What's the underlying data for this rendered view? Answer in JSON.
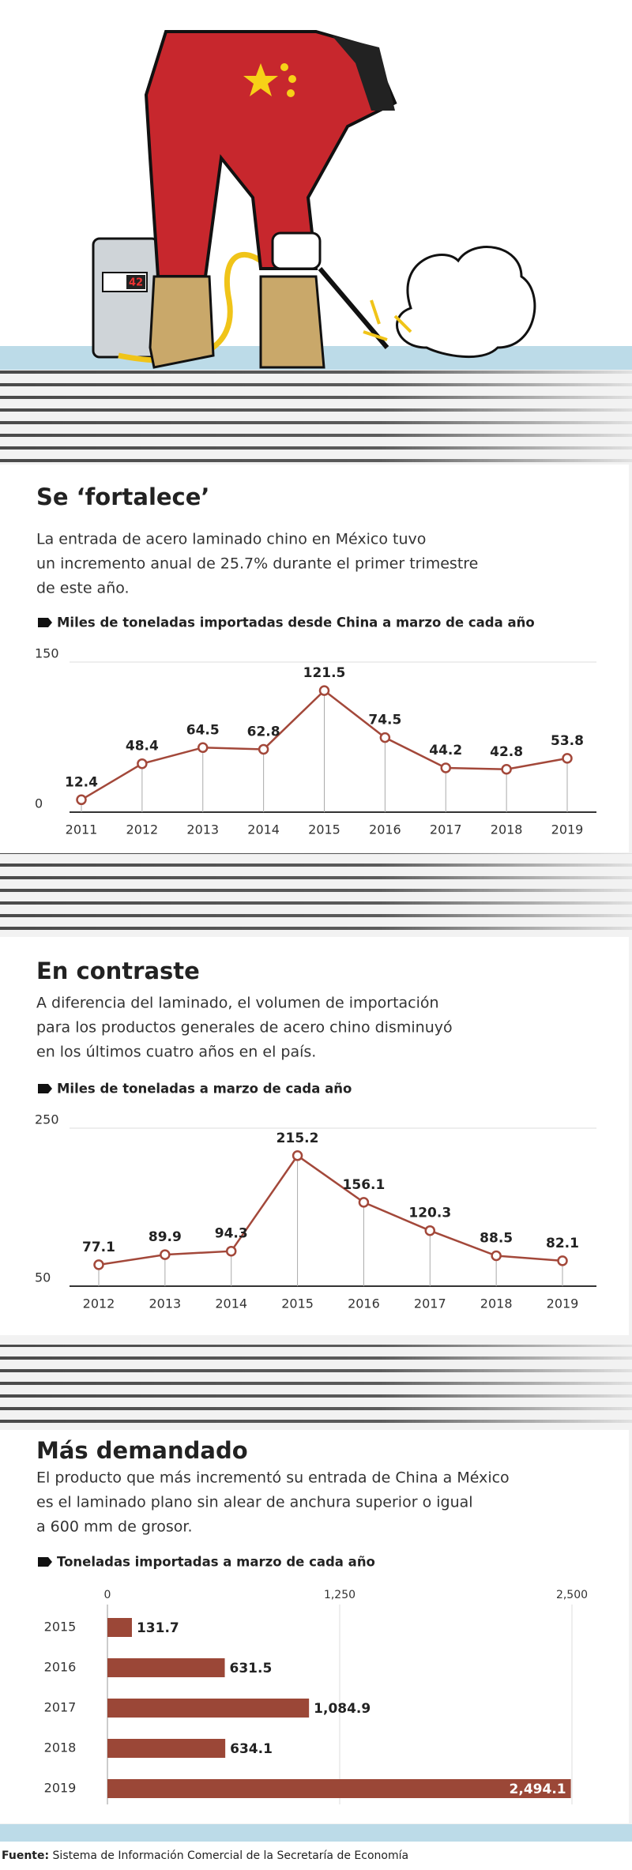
{
  "illustration": {
    "display": "42"
  },
  "chart_data": [
    {
      "type": "line",
      "title": "Se ‘fortalece’",
      "subtitle": [
        "La entrada de acero laminado chino en México tuvo",
        "un incremento anual de 25.7% durante el primer trimestre",
        "de este año."
      ],
      "axis_label": "Miles de toneladas importadas desde China a marzo de cada año",
      "categories": [
        "2011",
        "2012",
        "2013",
        "2014",
        "2015",
        "2016",
        "2017",
        "2018",
        "2019"
      ],
      "values": [
        12.4,
        48.4,
        64.5,
        62.8,
        121.5,
        74.5,
        44.2,
        42.8,
        53.8
      ],
      "color": "#a3483a",
      "ylim": [
        0,
        150
      ],
      "yticks": [
        0,
        150
      ],
      "grid": true
    },
    {
      "type": "line",
      "title": "En contraste",
      "subtitle": [
        "A diferencia del laminado, el volumen de importación",
        "para los productos generales de acero chino disminuyó",
        "en los últimos cuatro años en el país."
      ],
      "axis_label": "Miles de toneladas a marzo de cada año",
      "categories": [
        "2012",
        "2013",
        "2014",
        "2015",
        "2016",
        "2017",
        "2018",
        "2019"
      ],
      "values": [
        77.1,
        89.9,
        94.3,
        215.2,
        156.1,
        120.3,
        88.5,
        82.1
      ],
      "color": "#a3483a",
      "ylim": [
        50,
        250
      ],
      "yticks": [
        50,
        250
      ],
      "grid": true
    },
    {
      "type": "hbar",
      "title": "Más demandado",
      "subtitle": [
        "El producto que más incrementó su entrada de China a México",
        "es el laminado plano sin alear de anchura superior o igual",
        "a 600 mm de grosor."
      ],
      "axis_label": "Toneladas importadas a marzo de cada año",
      "categories": [
        "2015",
        "2016",
        "2017",
        "2018",
        "2019"
      ],
      "values": [
        131.7,
        631.5,
        1084.9,
        634.1,
        2494.1
      ],
      "value_labels": [
        "131.7",
        "631.5",
        "1,084.9",
        "634.1",
        "2,494.1"
      ],
      "color": "#9b4737",
      "xlim": [
        0,
        2500
      ],
      "xticks": [
        0,
        {
          "value": 1250,
          "label": "1,250"
        },
        {
          "value": 2500,
          "label": "2,500"
        }
      ],
      "grid": true
    }
  ],
  "footer": {
    "label": "Fuente:",
    "text": "Sistema de Información Comercial de la Secretaría de Economía"
  }
}
